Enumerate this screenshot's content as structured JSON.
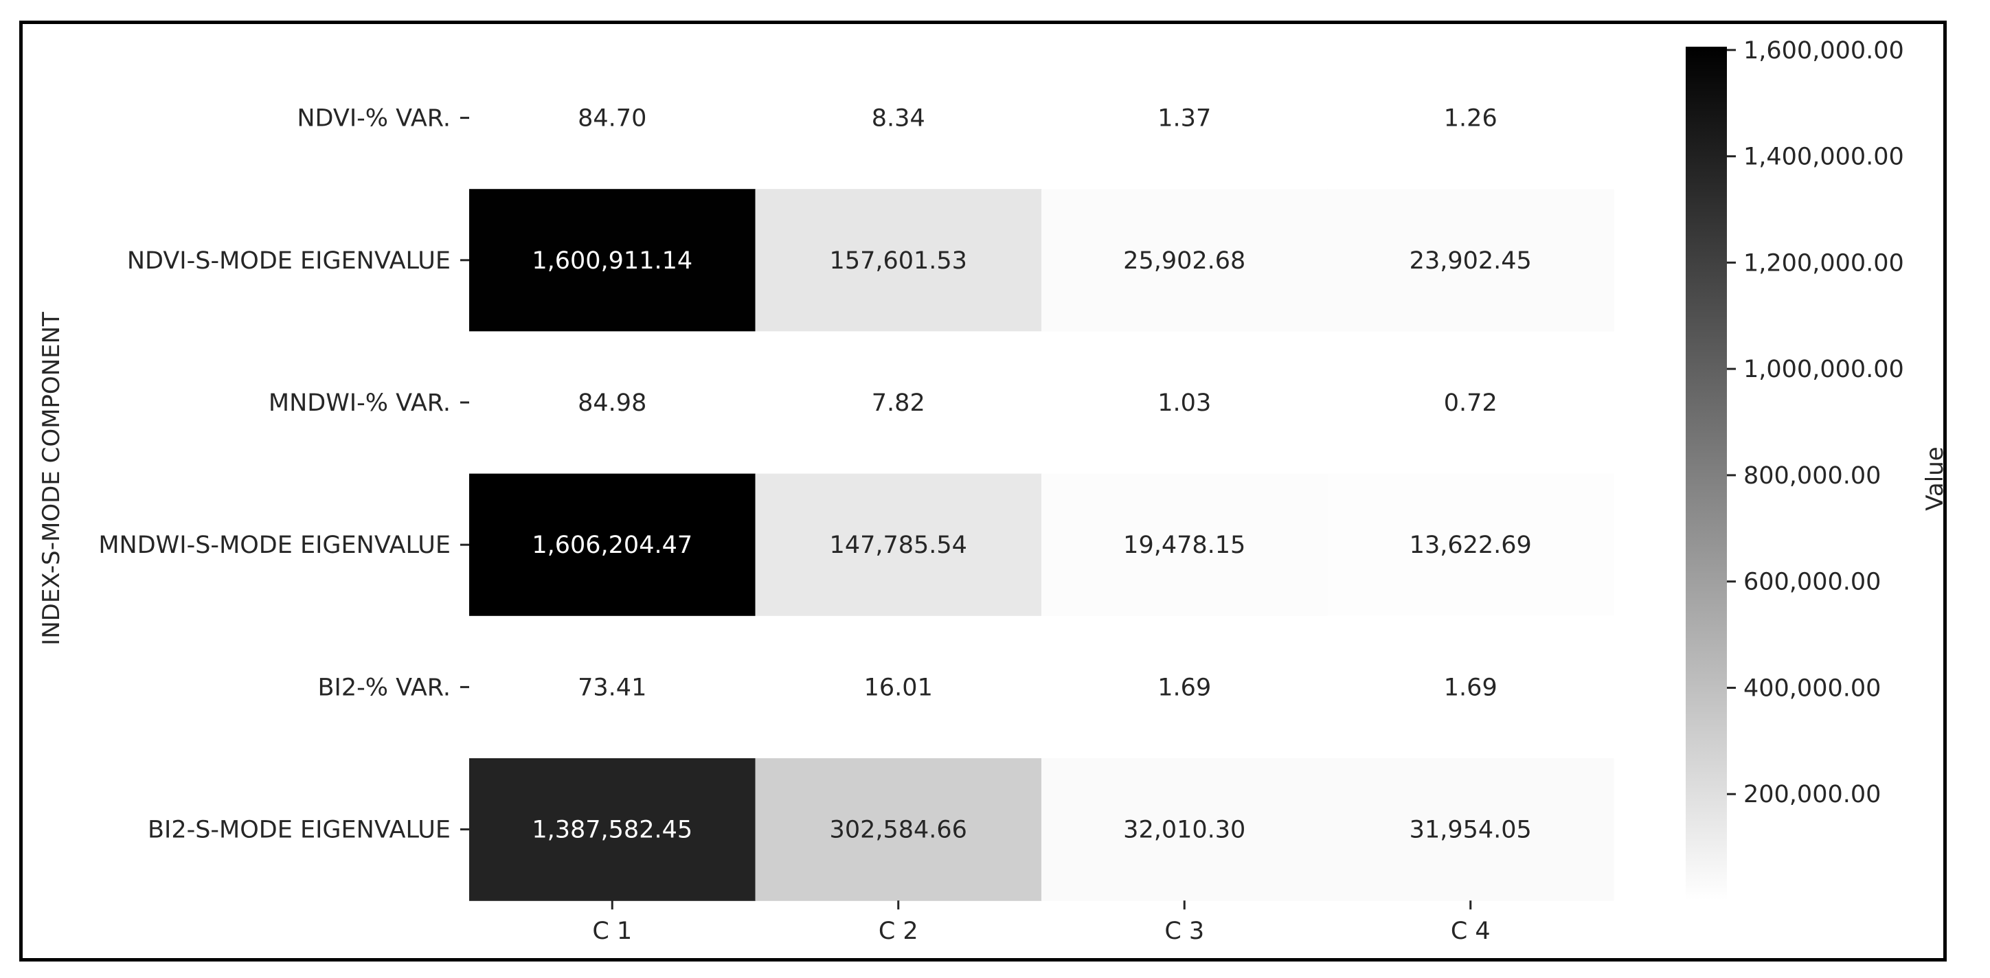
{
  "chart_data": {
    "type": "heatmap",
    "title": "",
    "xlabel": "",
    "ylabel": "INDEX-S-MODE COMPONENT",
    "columns": [
      "C 1",
      "C 2",
      "C 3",
      "C 4"
    ],
    "rows": [
      "NDVI-% VAR.",
      "NDVI-S-MODE EIGENVALUE",
      "MNDWI-% VAR.",
      "MNDWI-S-MODE EIGENVALUE",
      "BI2-% VAR.",
      "BI2-S-MODE EIGENVALUE"
    ],
    "values": [
      [
        84.7,
        8.34,
        1.37,
        1.26
      ],
      [
        1600911.14,
        157601.53,
        25902.68,
        23902.45
      ],
      [
        84.98,
        7.82,
        1.03,
        0.72
      ],
      [
        1606204.47,
        147785.54,
        19478.15,
        13622.69
      ],
      [
        73.41,
        16.01,
        1.69,
        1.69
      ],
      [
        1387582.45,
        302584.66,
        32010.3,
        31954.05
      ]
    ],
    "cell_labels": [
      [
        "84.70",
        "8.34",
        "1.37",
        "1.26"
      ],
      [
        "1,600,911.14",
        "157,601.53",
        "25,902.68",
        "23,902.45"
      ],
      [
        "84.98",
        "7.82",
        "1.03",
        "0.72"
      ],
      [
        "1,606,204.47",
        "147,785.54",
        "19,478.15",
        "13,622.69"
      ],
      [
        "73.41",
        "16.01",
        "1.69",
        "1.69"
      ],
      [
        "1,387,582.45",
        "302,584.66",
        "32,010.30",
        "31,954.05"
      ]
    ],
    "colorbar": {
      "label": "Value",
      "range": [
        0.72,
        1606204.47
      ],
      "ticks": [
        200000,
        400000,
        600000,
        800000,
        1000000,
        1200000,
        1400000,
        1600000
      ],
      "tick_labels": [
        "200,000.00",
        "400,000.00",
        "600,000.00",
        "800,000.00",
        "1,000,000.00",
        "1,200,000.00",
        "1,400,000.00",
        "1,600,000.00"
      ],
      "colormap": "Greys",
      "low_color": "#ffffff",
      "high_color": "#000000"
    }
  }
}
